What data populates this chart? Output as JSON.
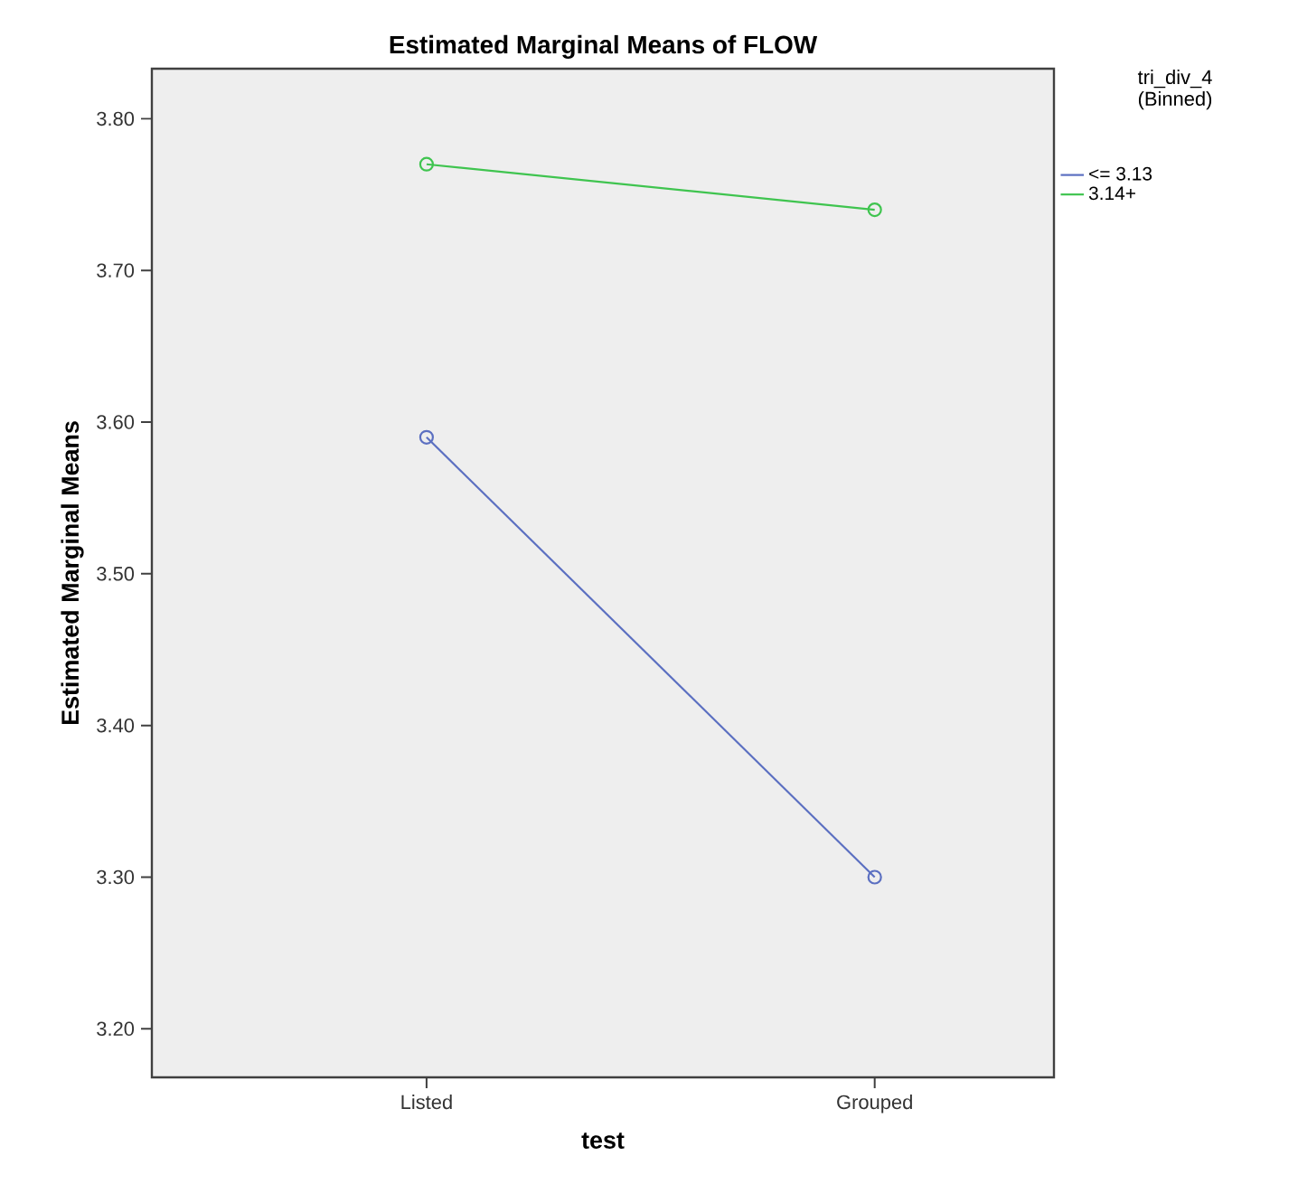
{
  "chart_data": {
    "type": "line",
    "title": "Estimated Marginal Means of FLOW",
    "xlabel": "test",
    "ylabel": "Estimated Marginal Means",
    "legend_title": "tri_div_4 (Binned)",
    "categories": [
      "Listed",
      "Grouped"
    ],
    "series": [
      {
        "name": "<= 3.13",
        "color": "#5b6fc1",
        "values": [
          3.59,
          3.3
        ]
      },
      {
        "name": "3.14+",
        "color": "#3fc44f",
        "values": [
          3.77,
          3.74
        ]
      }
    ],
    "ylim": [
      3.168,
      3.833
    ],
    "yticks": [
      {
        "value": 3.2,
        "label": "3.20"
      },
      {
        "value": 3.3,
        "label": "3.30"
      },
      {
        "value": 3.4,
        "label": "3.40"
      },
      {
        "value": 3.5,
        "label": "3.50"
      },
      {
        "value": 3.6,
        "label": "3.60"
      },
      {
        "value": 3.7,
        "label": "3.70"
      },
      {
        "value": 3.8,
        "label": "3.80"
      }
    ],
    "legend": "right",
    "marker": "circle",
    "line_style": "solid",
    "grid": false
  }
}
